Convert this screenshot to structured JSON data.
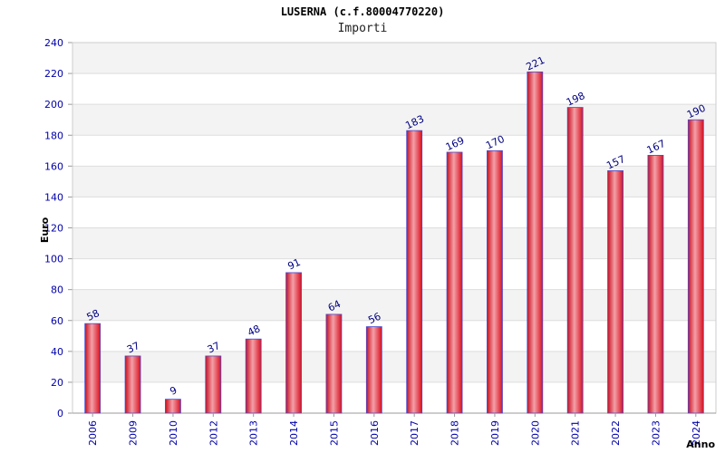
{
  "chart_data": {
    "type": "bar",
    "title": "LUSERNA (c.f.80004770220)",
    "subtitle": "Importi",
    "xlabel": "Anno",
    "ylabel": "Euro",
    "ylim": [
      0,
      240
    ],
    "yticks": [
      0,
      20,
      40,
      60,
      80,
      100,
      120,
      140,
      160,
      180,
      200,
      220,
      240
    ],
    "grid": true,
    "categories": [
      "2006",
      "2009",
      "2010",
      "2012",
      "2013",
      "2014",
      "2015",
      "2016",
      "2017",
      "2018",
      "2019",
      "2020",
      "2021",
      "2022",
      "2023",
      "2024"
    ],
    "values": [
      58,
      37,
      9,
      37,
      48,
      91,
      64,
      56,
      183,
      169,
      170,
      221,
      198,
      157,
      167,
      190
    ],
    "data_labels": [
      "58",
      "37",
      "9",
      "37",
      "48",
      "91",
      "64",
      "56",
      "183",
      "169",
      "170",
      "221",
      "198",
      "157",
      "167",
      "190"
    ],
    "colors": {
      "bar": "#e8192c",
      "bar_highlight": "#f4a0a8",
      "bar_edge": "#4a4ad0",
      "tick_label": "#0000aa",
      "data_label": "#000080",
      "band": "#f3f3f3",
      "grid": "#dddddd"
    }
  }
}
